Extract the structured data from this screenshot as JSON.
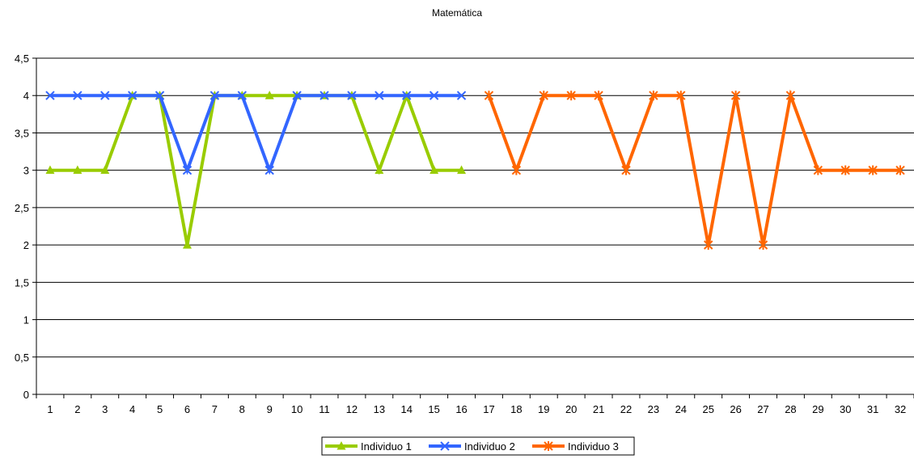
{
  "chart_data": {
    "type": "line",
    "title": "Matemática",
    "xlabel": "",
    "ylabel": "",
    "ylim": [
      0,
      4.5
    ],
    "yticks": [
      "0",
      "0,5",
      "1",
      "1,5",
      "2",
      "2,5",
      "3",
      "3,5",
      "4",
      "4,5"
    ],
    "categories": [
      "1",
      "2",
      "3",
      "4",
      "5",
      "6",
      "7",
      "8",
      "9",
      "10",
      "11",
      "12",
      "13",
      "14",
      "15",
      "16",
      "17",
      "18",
      "19",
      "20",
      "21",
      "22",
      "23",
      "24",
      "25",
      "26",
      "27",
      "28",
      "29",
      "30",
      "31",
      "32"
    ],
    "grid": "horizontal",
    "legend_position": "bottom",
    "series": [
      {
        "name": "Individuo 1",
        "color": "#99cc00",
        "marker": "triangle",
        "values": [
          3,
          3,
          3,
          4,
          4,
          2,
          4,
          4,
          4,
          4,
          4,
          4,
          3,
          4,
          3,
          3,
          null,
          null,
          null,
          null,
          null,
          null,
          null,
          null,
          null,
          null,
          null,
          null,
          null,
          null,
          null,
          null
        ]
      },
      {
        "name": "Individuo 2",
        "color": "#3366ff",
        "marker": "x",
        "values": [
          4,
          4,
          4,
          4,
          4,
          3,
          4,
          4,
          3,
          4,
          4,
          4,
          4,
          4,
          4,
          4,
          null,
          null,
          null,
          null,
          null,
          null,
          null,
          null,
          null,
          null,
          null,
          null,
          null,
          null,
          null,
          null
        ]
      },
      {
        "name": "Individuo 3",
        "color": "#ff6600",
        "marker": "star",
        "values": [
          null,
          null,
          null,
          null,
          null,
          null,
          null,
          null,
          null,
          null,
          null,
          null,
          null,
          null,
          null,
          null,
          4,
          3,
          4,
          4,
          4,
          3,
          4,
          4,
          2,
          4,
          2,
          4,
          3,
          3,
          3,
          3
        ]
      }
    ]
  }
}
